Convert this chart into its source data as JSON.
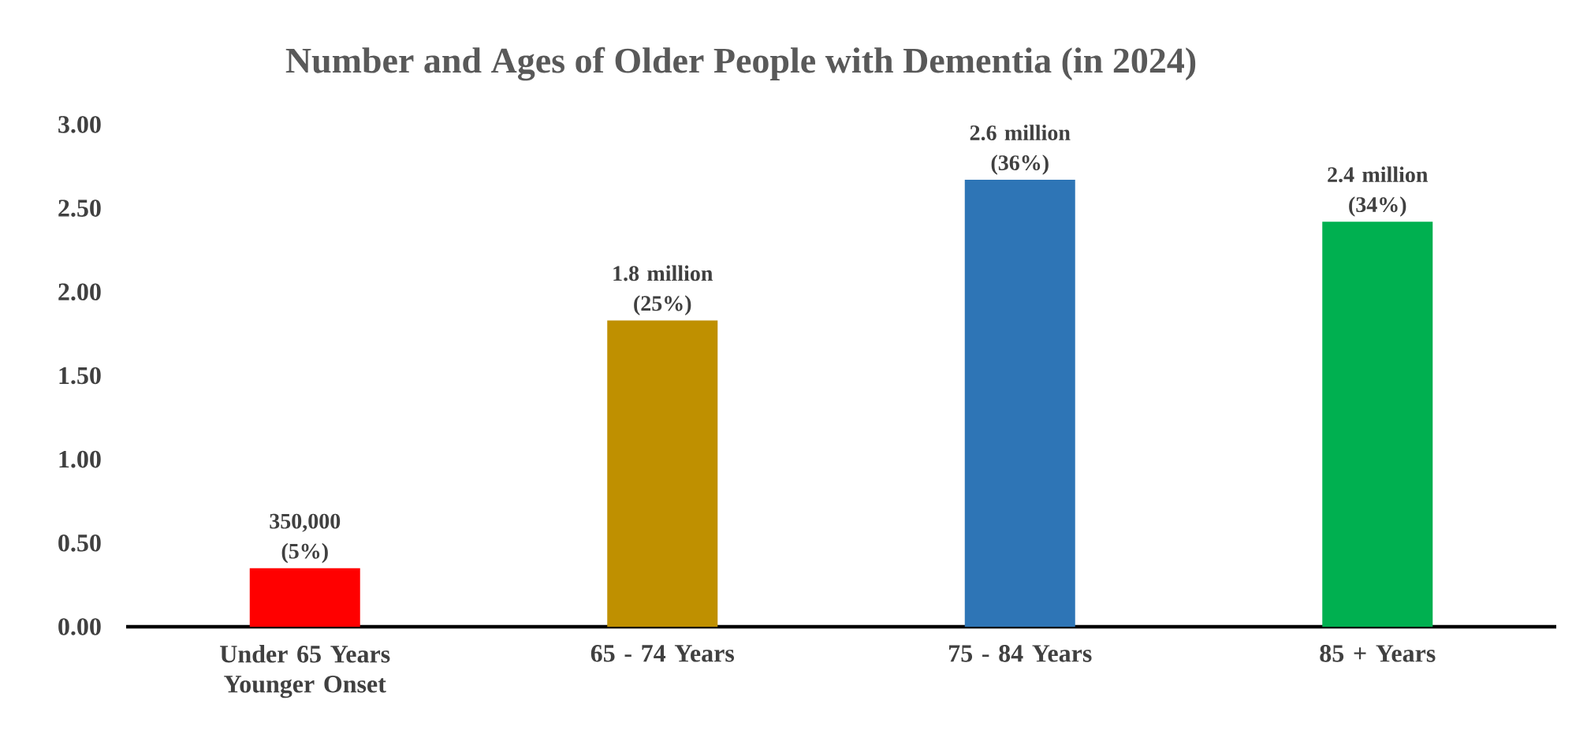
{
  "chart_data": {
    "type": "bar",
    "title": "Number and Ages of Older People with Dementia (in 2024)",
    "categories": [
      "Under 65 Years Younger Onset",
      "65 - 74 Years",
      "75 - 84 Years",
      "85 + Years"
    ],
    "values": [
      0.35,
      1.83,
      2.67,
      2.42
    ],
    "colors": [
      "#ff0000",
      "#bf9000",
      "#2e75b6",
      "#00b050"
    ],
    "annotations": [
      {
        "text": "350,000 (5%)",
        "x": "Under 65 Years Younger Onset",
        "y": 0.35
      },
      {
        "text": "1.8 million (25%)",
        "x": "65 - 74 Years",
        "y": 1.83
      },
      {
        "text": "2.6 million (36%)",
        "x": "75 - 84 Years",
        "y": 2.67
      },
      {
        "text": "2.4 million (34%)",
        "x": "85 + Years",
        "y": 2.42
      }
    ],
    "ylim": [
      0,
      3
    ],
    "yticks": [
      {
        "value": 0,
        "label": "0.00"
      },
      {
        "value": 0.5,
        "label": "0.50"
      },
      {
        "value": 1,
        "label": "1.00"
      },
      {
        "value": 1.5,
        "label": "1.50"
      },
      {
        "value": 2,
        "label": "2.00"
      },
      {
        "value": 2.5,
        "label": "2.50"
      },
      {
        "value": 3,
        "label": "3.00"
      }
    ],
    "grid": false
  }
}
